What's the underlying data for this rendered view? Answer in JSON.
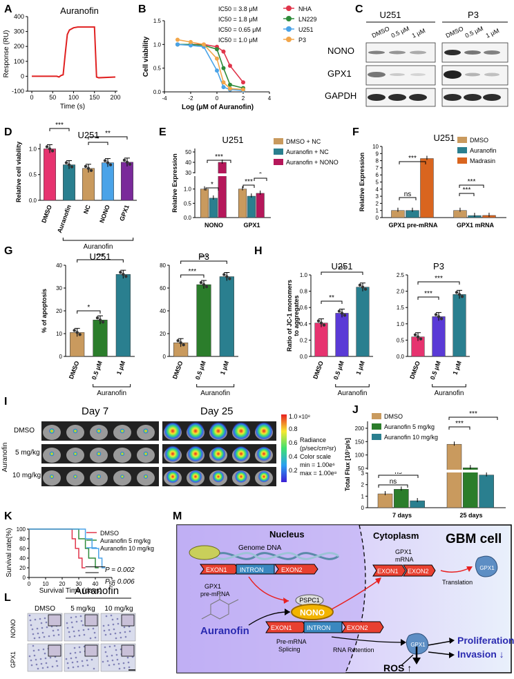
{
  "panels": {
    "A": {
      "letter": "A",
      "title": "Auranofin",
      "ylabel": "Response (RU)",
      "xlabel": "Time (s)"
    },
    "B": {
      "letter": "B",
      "ylabel": "Cell viability",
      "xlabel": "Log (μM of Auranofin)"
    },
    "C": {
      "letter": "C",
      "groups": [
        "U251",
        "P3"
      ],
      "lanes": [
        "DMSO",
        "0.5 μM",
        "1 μM"
      ],
      "rows": [
        "NONO",
        "GPX1",
        "GAPDH"
      ]
    },
    "D": {
      "letter": "D",
      "title": "U251",
      "ylabel": "Relative cell viability",
      "group_label": "Auranofin"
    },
    "E": {
      "letter": "E",
      "title": "U251",
      "ylabel": "Relative Expression"
    },
    "F": {
      "letter": "F",
      "title": "U251",
      "ylabel": "Relative Expression"
    },
    "G": {
      "letter": "G",
      "titles": [
        "U251",
        "P3"
      ],
      "ylabel": "% of apoptosis",
      "group_label": "Auranofin"
    },
    "H": {
      "letter": "H",
      "titles": [
        "U251",
        "P3"
      ],
      "ylabel1": "Ratio of  JC-1 monomers",
      "ylabel2": "to aggregates",
      "group_label": "Auranofin"
    },
    "I": {
      "letter": "I",
      "days": [
        "Day 7",
        "Day 25"
      ],
      "rows": [
        "DMSO",
        "5 mg/kg",
        "10 mg/kg"
      ],
      "side_label": "Auranofin",
      "colorbar_ticks": [
        "1.0",
        "0.8",
        "0.6",
        "0.4",
        "0.2"
      ],
      "colorbar_exp": "×10⁸",
      "legend": [
        "Radiance",
        "(p/sec/cm²sr)",
        "Color scale",
        "min = 1.00e⁶",
        "max = 1.00e⁸"
      ]
    },
    "J": {
      "letter": "J",
      "ylabel": "Total Flux [10⁷p/s]"
    },
    "K": {
      "letter": "K",
      "ylabel": "Survival rate(%)",
      "xlabel": "Survival Time (days)",
      "pvals": [
        "P = 0.002",
        "P = 0.006"
      ]
    },
    "L": {
      "letter": "L",
      "title": "Auranofin",
      "cols": [
        "DMSO",
        "5 mg/kg",
        "10 mg/kg"
      ],
      "rows": [
        "NONO",
        "GPX1"
      ]
    },
    "M": {
      "letter": "M",
      "nucleus": "Nucleus",
      "cytoplasm": "Cytoplasm",
      "cell": "GBM cell",
      "genome": "Genome DNA",
      "exon1": "EXON1",
      "intron": "INTRON",
      "exon2": "EXON2",
      "gpx1_pre": [
        "GPX1",
        "pre-mRNA"
      ],
      "gpx1_mrna": [
        "GPX1",
        "mRNA"
      ],
      "translation": "Translation",
      "gpx1": "GPX1",
      "pspc1": "PSPC1",
      "nono": "NONO",
      "auranofin": "Auranofin",
      "premrna": [
        "Pre-mRNA",
        "Splicing"
      ],
      "retention": "RNA Retention",
      "prolif": "Proliferation ↓",
      "invasion": "Invasion ↓",
      "ros": "ROS ↑"
    }
  },
  "colors": {
    "red": "#e0344a",
    "green": "#2e8b3a",
    "blue": "#3a8fd6",
    "orange": "#f2a64a",
    "tan": "#c99a5e",
    "teal": "#2a7f8f",
    "magenta": "#b5175a",
    "purple": "#7a2a9a",
    "pink": "#e6336f",
    "darkgreen": "#2b7d2b",
    "lightblue": "#4aa3e8",
    "violet": "#5a3ad6"
  },
  "chart_data": [
    {
      "id": "A",
      "type": "line",
      "title": "Auranofin",
      "xlabel": "Time (s)",
      "ylabel": "Response (RU)",
      "xticks": [
        0,
        50,
        100,
        150,
        200
      ],
      "yticks": [
        -100,
        0,
        100,
        200,
        300,
        400
      ],
      "xlim": [
        -10,
        205
      ],
      "ylim": [
        -100,
        400
      ],
      "x": [
        0,
        60,
        65,
        70,
        75,
        80,
        85,
        90,
        100,
        110,
        150,
        155,
        160,
        200
      ],
      "y": [
        0,
        0,
        -5,
        5,
        10,
        150,
        280,
        310,
        325,
        330,
        330,
        -5,
        -10,
        -5
      ]
    },
    {
      "id": "B",
      "type": "scatter",
      "xlabel": "Log (μM of Auranofin)",
      "ylabel": "Cell viability",
      "xticks": [
        -4,
        -2,
        0,
        2,
        4
      ],
      "yticks": [
        0.0,
        0.5,
        1.0,
        1.5
      ],
      "xlim": [
        -4,
        4
      ],
      "ylim": [
        0,
        1.5
      ],
      "series": [
        {
          "name": "NHA",
          "label": "IC50 = 3.8 μM",
          "x": [
            -3,
            -2,
            -1,
            0,
            0.5,
            1,
            2
          ],
          "y": [
            1.0,
            1.0,
            1.0,
            0.95,
            0.85,
            0.55,
            0.2
          ]
        },
        {
          "name": "LN229",
          "label": "IC50 = 1.8 μM",
          "x": [
            -3,
            -2,
            -1,
            0,
            0.5,
            1,
            2
          ],
          "y": [
            1.0,
            1.0,
            0.98,
            0.9,
            0.5,
            0.15,
            0.08
          ]
        },
        {
          "name": "U251",
          "label": "IC50 = 0.65 μM",
          "x": [
            -3,
            -2,
            -1,
            0,
            0.5,
            1,
            2
          ],
          "y": [
            1.0,
            0.98,
            0.95,
            0.45,
            0.1,
            0.05,
            0.03
          ]
        },
        {
          "name": "P3",
          "label": "IC50 = 1.0 μM",
          "x": [
            -3,
            -2,
            -1,
            0,
            0.5,
            1,
            2
          ],
          "y": [
            1.1,
            1.05,
            1.0,
            0.7,
            0.2,
            0.07,
            0.05
          ]
        }
      ]
    },
    {
      "id": "D",
      "type": "bar",
      "title": "U251",
      "ylabel": "Relative cell viability",
      "categories": [
        "DMSO",
        "Auranofin",
        "NC",
        "NONO",
        "GPX1"
      ],
      "values": [
        1.0,
        0.69,
        0.62,
        0.73,
        0.74
      ],
      "yticks": [
        0.0,
        0.5,
        1.0
      ],
      "ylim": [
        0,
        1.1
      ],
      "sig": [
        {
          "from": 0,
          "to": 1,
          "label": "***"
        },
        {
          "from": 2,
          "to": 3,
          "label": "*"
        },
        {
          "from": 2,
          "to": 4,
          "label": "**"
        }
      ]
    },
    {
      "id": "E",
      "type": "bar",
      "title": "U251",
      "ylabel": "Relative Expression",
      "categories": [
        "NONO",
        "GPX1"
      ],
      "series": [
        {
          "name": "DMSO + NC",
          "values": [
            1.0,
            1.0
          ]
        },
        {
          "name": "Auranofin + NC",
          "values": [
            0.68,
            0.75
          ]
        },
        {
          "name": "Auranofin + NONO",
          "values": [
            40,
            0.85
          ]
        }
      ],
      "yticks": [
        0.0,
        0.5,
        1.0,
        30,
        40,
        50
      ],
      "sig": [
        {
          "label": "*"
        },
        {
          "label": "***"
        },
        {
          "label": "***"
        },
        {
          "label": "*"
        }
      ]
    },
    {
      "id": "F",
      "type": "bar",
      "title": "U251",
      "ylabel": "Relative Expression",
      "categories": [
        "GPX1 pre-mRNA",
        "GPX1 mRNA"
      ],
      "series": [
        {
          "name": "DMSO",
          "values": [
            1.0,
            1.0
          ]
        },
        {
          "name": "Auranofin",
          "values": [
            1.0,
            0.28
          ]
        },
        {
          "name": "Madrasin",
          "values": [
            8.3,
            0.3
          ]
        }
      ],
      "yticks": [
        0,
        1,
        2,
        3,
        4,
        5,
        6,
        7,
        8,
        9,
        10
      ],
      "ylim": [
        0,
        10
      ],
      "sig": [
        {
          "label": "ns"
        },
        {
          "label": "***"
        },
        {
          "label": "***"
        },
        {
          "label": "***"
        }
      ]
    },
    {
      "id": "G1",
      "type": "bar",
      "title": "U251",
      "ylabel": "% of apoptosis",
      "categories": [
        "DMSO",
        "0.5 μM",
        "1 μM"
      ],
      "values": [
        10.5,
        16,
        36
      ],
      "yticks": [
        0,
        10,
        20,
        30,
        40
      ],
      "ylim": [
        0,
        40
      ],
      "sig": [
        {
          "label": "*"
        },
        {
          "label": "***"
        }
      ]
    },
    {
      "id": "G2",
      "type": "bar",
      "title": "P3",
      "categories": [
        "DMSO",
        "0.5 μM",
        "1 μM"
      ],
      "values": [
        12,
        63,
        70
      ],
      "yticks": [
        0,
        20,
        40,
        60,
        80
      ],
      "ylim": [
        0,
        80
      ],
      "sig": [
        {
          "label": "***"
        },
        {
          "label": "***"
        }
      ]
    },
    {
      "id": "H1",
      "type": "bar",
      "title": "U251",
      "ylabel": "Ratio of  JC-1 monomers to aggregates",
      "categories": [
        "DMSO",
        "0.5 μM",
        "1 μM"
      ],
      "values": [
        0.41,
        0.53,
        0.85
      ],
      "yticks": [
        0.0,
        0.2,
        0.4,
        0.6,
        0.8,
        1.0
      ],
      "ylim": [
        0,
        1.0
      ],
      "sig": [
        {
          "label": "**"
        },
        {
          "label": "***"
        }
      ]
    },
    {
      "id": "H2",
      "type": "bar",
      "title": "P3",
      "categories": [
        "DMSO",
        "0.5 μM",
        "1 μM"
      ],
      "values": [
        0.6,
        1.22,
        1.9
      ],
      "yticks": [
        0.0,
        0.5,
        1.0,
        1.5,
        2.0,
        2.5
      ],
      "ylim": [
        0,
        2.5
      ],
      "sig": [
        {
          "label": "***"
        },
        {
          "label": "***"
        }
      ]
    },
    {
      "id": "J",
      "type": "bar",
      "ylabel": "Total Flux [10⁷p/s]",
      "categories": [
        "7 days",
        "25 days"
      ],
      "series": [
        {
          "name": "DMSO",
          "values": [
            1.2,
            140
          ]
        },
        {
          "name": "Auranofin 5 mg/kg",
          "values": [
            1.6,
            52
          ]
        },
        {
          "name": "Auranofin 10 mg/kg",
          "values": [
            0.6,
            25
          ]
        }
      ],
      "yticks": [
        0,
        1,
        2,
        3,
        50,
        100,
        150,
        200
      ],
      "sig": [
        {
          "label": "ns"
        },
        {
          "label": "ns"
        },
        {
          "label": "***"
        },
        {
          "label": "***"
        }
      ]
    },
    {
      "id": "K",
      "type": "line",
      "ylabel": "Survival rate(%)",
      "xlabel": "Survival Time (days)",
      "xticks": [
        0,
        10,
        20,
        30,
        40,
        50
      ],
      "yticks": [
        0,
        20,
        40,
        60,
        80,
        100
      ],
      "xlim": [
        0,
        50
      ],
      "ylim": [
        0,
        100
      ],
      "series": [
        {
          "name": "DMSO",
          "x": [
            0,
            26,
            26,
            28,
            28,
            30,
            30,
            32,
            32,
            34
          ],
          "y": [
            100,
            100,
            80,
            80,
            60,
            60,
            40,
            40,
            20,
            20
          ]
        },
        {
          "name": "Auranofin 5 mg/kg",
          "x": [
            0,
            30,
            30,
            34,
            34,
            36,
            36,
            40,
            40,
            42
          ],
          "y": [
            100,
            100,
            80,
            80,
            60,
            60,
            40,
            40,
            20,
            20
          ]
        },
        {
          "name": "Auranofin 10 mg/kg",
          "x": [
            0,
            34,
            34,
            38,
            38,
            42,
            42,
            44,
            44,
            46
          ],
          "y": [
            100,
            100,
            80,
            80,
            60,
            60,
            40,
            40,
            20,
            20
          ]
        }
      ]
    }
  ]
}
